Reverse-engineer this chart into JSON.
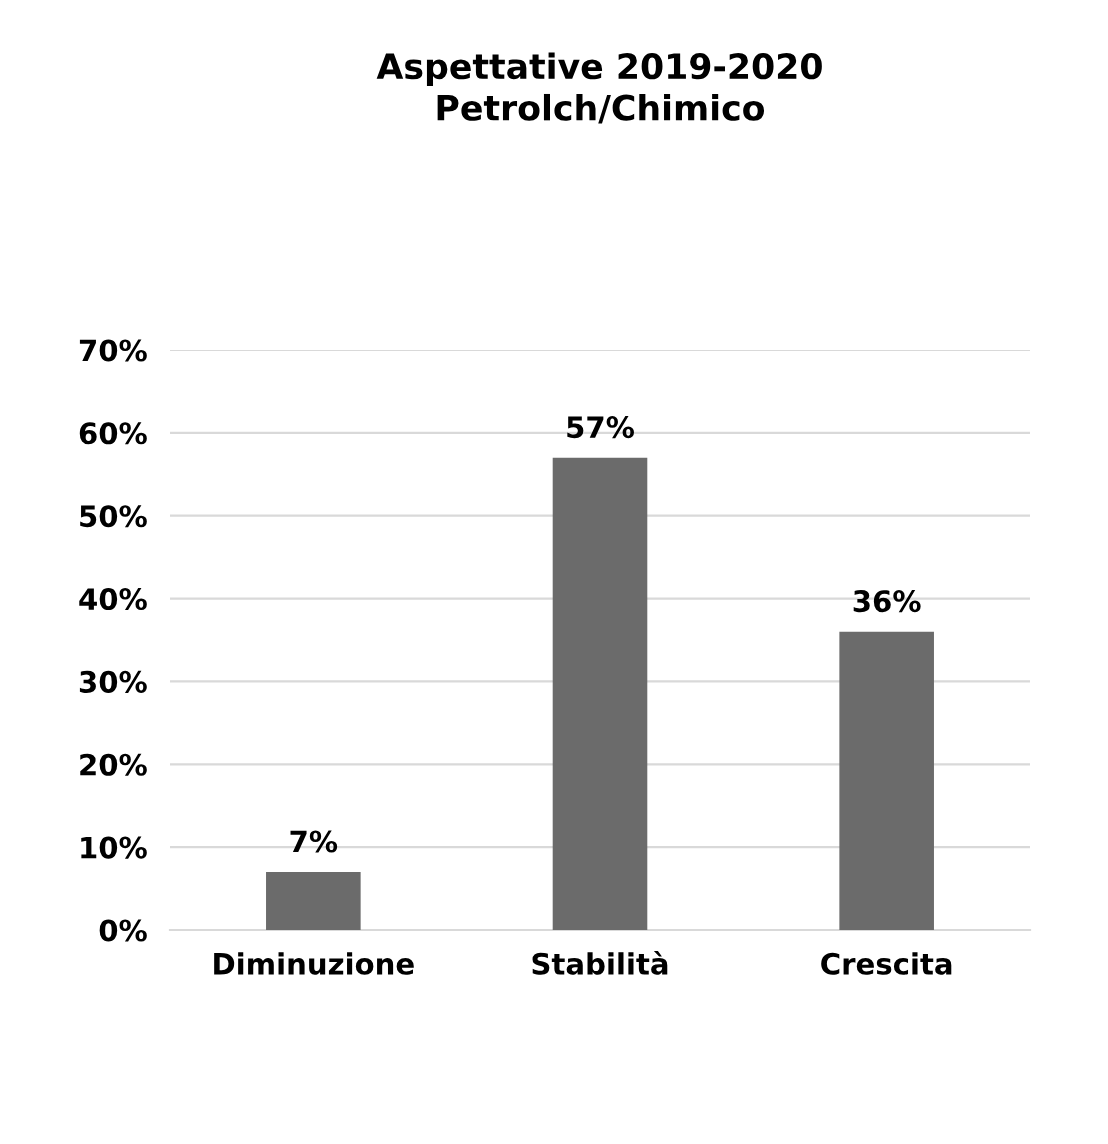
{
  "chart_data": {
    "type": "bar",
    "title": "Aspettative 2019-2020\nPetrolch/Chimico",
    "categories": [
      "Diminuzione",
      "Stabilità",
      "Crescita"
    ],
    "values": [
      7,
      57,
      36
    ],
    "value_labels": [
      "7%",
      "57%",
      "36%"
    ],
    "color": "#6b6b6b",
    "ylim": [
      0,
      70
    ],
    "yticks": [
      {
        "value": 0,
        "label": "0%"
      },
      {
        "value": 10,
        "label": "10%"
      },
      {
        "value": 20,
        "label": "20%"
      },
      {
        "value": 30,
        "label": "30%"
      },
      {
        "value": 40,
        "label": "40%"
      },
      {
        "value": 50,
        "label": "50%"
      },
      {
        "value": 60,
        "label": "60%"
      },
      {
        "value": 70,
        "label": "70%"
      }
    ],
    "grid": "y",
    "legend": false
  }
}
